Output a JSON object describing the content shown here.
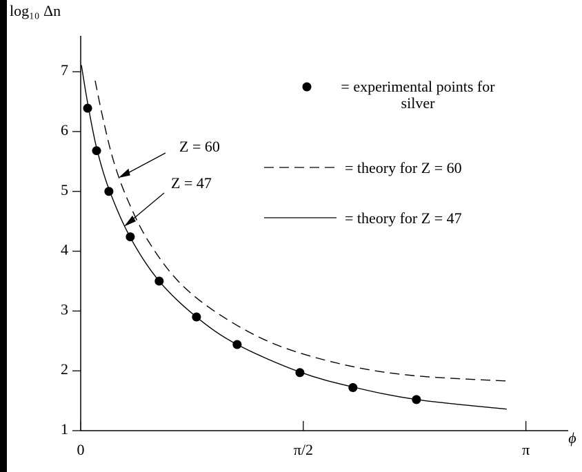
{
  "chart_data": {
    "type": "scatter-line",
    "y_label": "log₁₀ Δn",
    "x_label": "ϕ",
    "xlim": [
      0,
      3.44
    ],
    "ylim": [
      1,
      7.6
    ],
    "xticks": [
      0,
      {
        "value": 1.5708,
        "label": "π/2"
      },
      {
        "value": 3.1416,
        "label": "π"
      }
    ],
    "yticks": [
      1,
      2,
      3,
      4,
      5,
      6,
      7
    ],
    "series": [
      {
        "name": "= experimental points for silver",
        "style": "points",
        "color": "#000000",
        "x": [
          0.049,
          0.112,
          0.199,
          0.35,
          0.554,
          0.817,
          1.104,
          1.547,
          1.921,
          2.369
        ],
        "values": [
          6.39,
          5.68,
          5.0,
          4.24,
          3.5,
          2.9,
          2.44,
          1.97,
          1.72,
          1.52
        ]
      },
      {
        "name": "= theory for Z = 60",
        "style": "dashed",
        "color": "#000000",
        "x": [
          0.102,
          0.16,
          0.233,
          0.331,
          0.477,
          0.696,
          0.987,
          1.376,
          1.863,
          2.349,
          3.006
        ],
        "values": [
          6.85,
          6.19,
          5.5,
          4.86,
          4.17,
          3.48,
          2.93,
          2.44,
          2.1,
          1.92,
          1.83
        ]
      },
      {
        "name": "= theory for Z = 47",
        "style": "solid",
        "color": "#000000",
        "x": [
          0.005,
          0.049,
          0.112,
          0.199,
          0.35,
          0.554,
          0.817,
          1.104,
          1.547,
          1.921,
          2.369,
          3.006
        ],
        "values": [
          7.11,
          6.48,
          5.73,
          5.04,
          4.23,
          3.5,
          2.9,
          2.44,
          1.98,
          1.73,
          1.52,
          1.36
        ]
      }
    ],
    "annotations": [
      "Z = 60",
      "Z = 47"
    ]
  }
}
